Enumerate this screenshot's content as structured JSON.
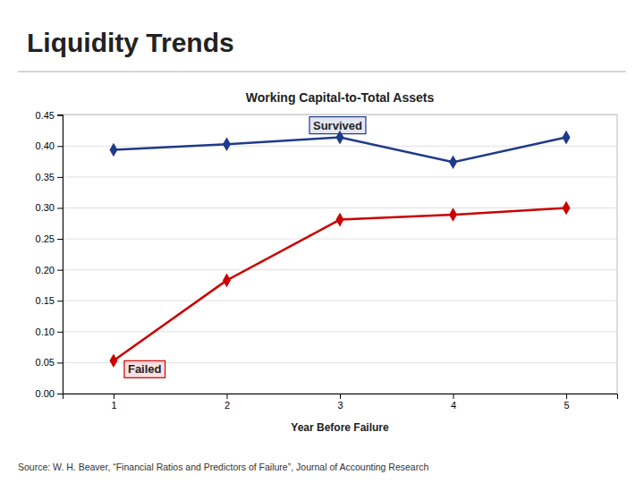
{
  "chart_data": {
    "type": "line",
    "title": "Liquidity Trends",
    "subtitle": "Working Capital-to-Total Assets",
    "x_label": "Year Before Failure",
    "source": "Source: W. H. Beaver, “Financial Ratios and Predictors of Failure”, Journal of Accounting Research",
    "x": [
      1,
      2,
      3,
      4,
      5
    ],
    "series": [
      {
        "name": "Survived",
        "color": "#1F3A8A",
        "marker": "diamond",
        "values": [
          0.394,
          0.403,
          0.414,
          0.374,
          0.414
        ]
      },
      {
        "name": "Failed",
        "color": "#CC0000",
        "marker": "diamond",
        "values": [
          0.053,
          0.183,
          0.281,
          0.289,
          0.3
        ]
      }
    ],
    "xlim": [
      0.55,
      5.45
    ],
    "xticks": [
      1,
      2,
      3,
      4,
      5
    ],
    "ylim": [
      0.0,
      0.451
    ],
    "yticks": [
      {
        "value": 0.0,
        "label": "0.00"
      },
      0.05,
      {
        "value": 0.1,
        "label": "0.10"
      },
      0.15,
      {
        "value": 0.2,
        "label": "0.20"
      },
      0.25,
      {
        "value": 0.3,
        "label": "0.30"
      },
      0.35,
      {
        "value": 0.4,
        "label": "0.40"
      },
      0.45
    ],
    "grid": true
  }
}
